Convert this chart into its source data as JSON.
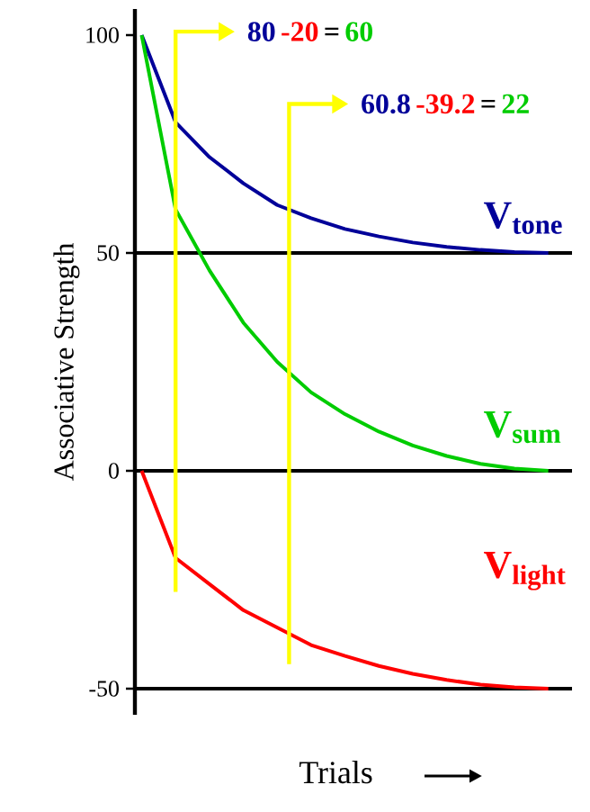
{
  "chart_data": {
    "type": "line",
    "xlabel": "Trials",
    "ylabel": "Associative Strength",
    "categories": [
      null,
      null,
      null,
      null,
      null,
      null,
      null,
      null,
      null,
      null,
      null,
      null,
      null
    ],
    "series": [
      {
        "name": "V$_{tone}$",
        "color": "#000099",
        "values": [
          100,
          80,
          72,
          66,
          61,
          58,
          55.5,
          53.8,
          52.4,
          51.4,
          50.7,
          50.2,
          50
        ]
      },
      {
        "name": "V$_{sum}$",
        "color": "#00cc00",
        "values": [
          100,
          60,
          46,
          34,
          25,
          18,
          13,
          9,
          5.8,
          3.4,
          1.6,
          0.5,
          0
        ]
      },
      {
        "name": "V$_{light}$",
        "color": "#ff0000",
        "values": [
          0,
          -20,
          -26,
          -32,
          -36,
          -40,
          -42.5,
          -44.8,
          -46.6,
          -48,
          -49.1,
          -49.7,
          -50
        ]
      }
    ],
    "ylim": [
      -56,
      106
    ],
    "yticks": [
      -50,
      0,
      50,
      100
    ],
    "ref_lines": [
      {
        "axis": "y",
        "value": 50,
        "color": "#000000"
      },
      {
        "axis": "y",
        "value": 0,
        "color": "#000000"
      },
      {
        "axis": "y",
        "value": -50,
        "color": "#000000"
      }
    ],
    "annotations": [
      "80",
      "-20",
      "=",
      "60",
      "60.8",
      "-39.2",
      "=",
      "22"
    ],
    "grid": false,
    "marker": "none",
    "line_style": "solid"
  }
}
